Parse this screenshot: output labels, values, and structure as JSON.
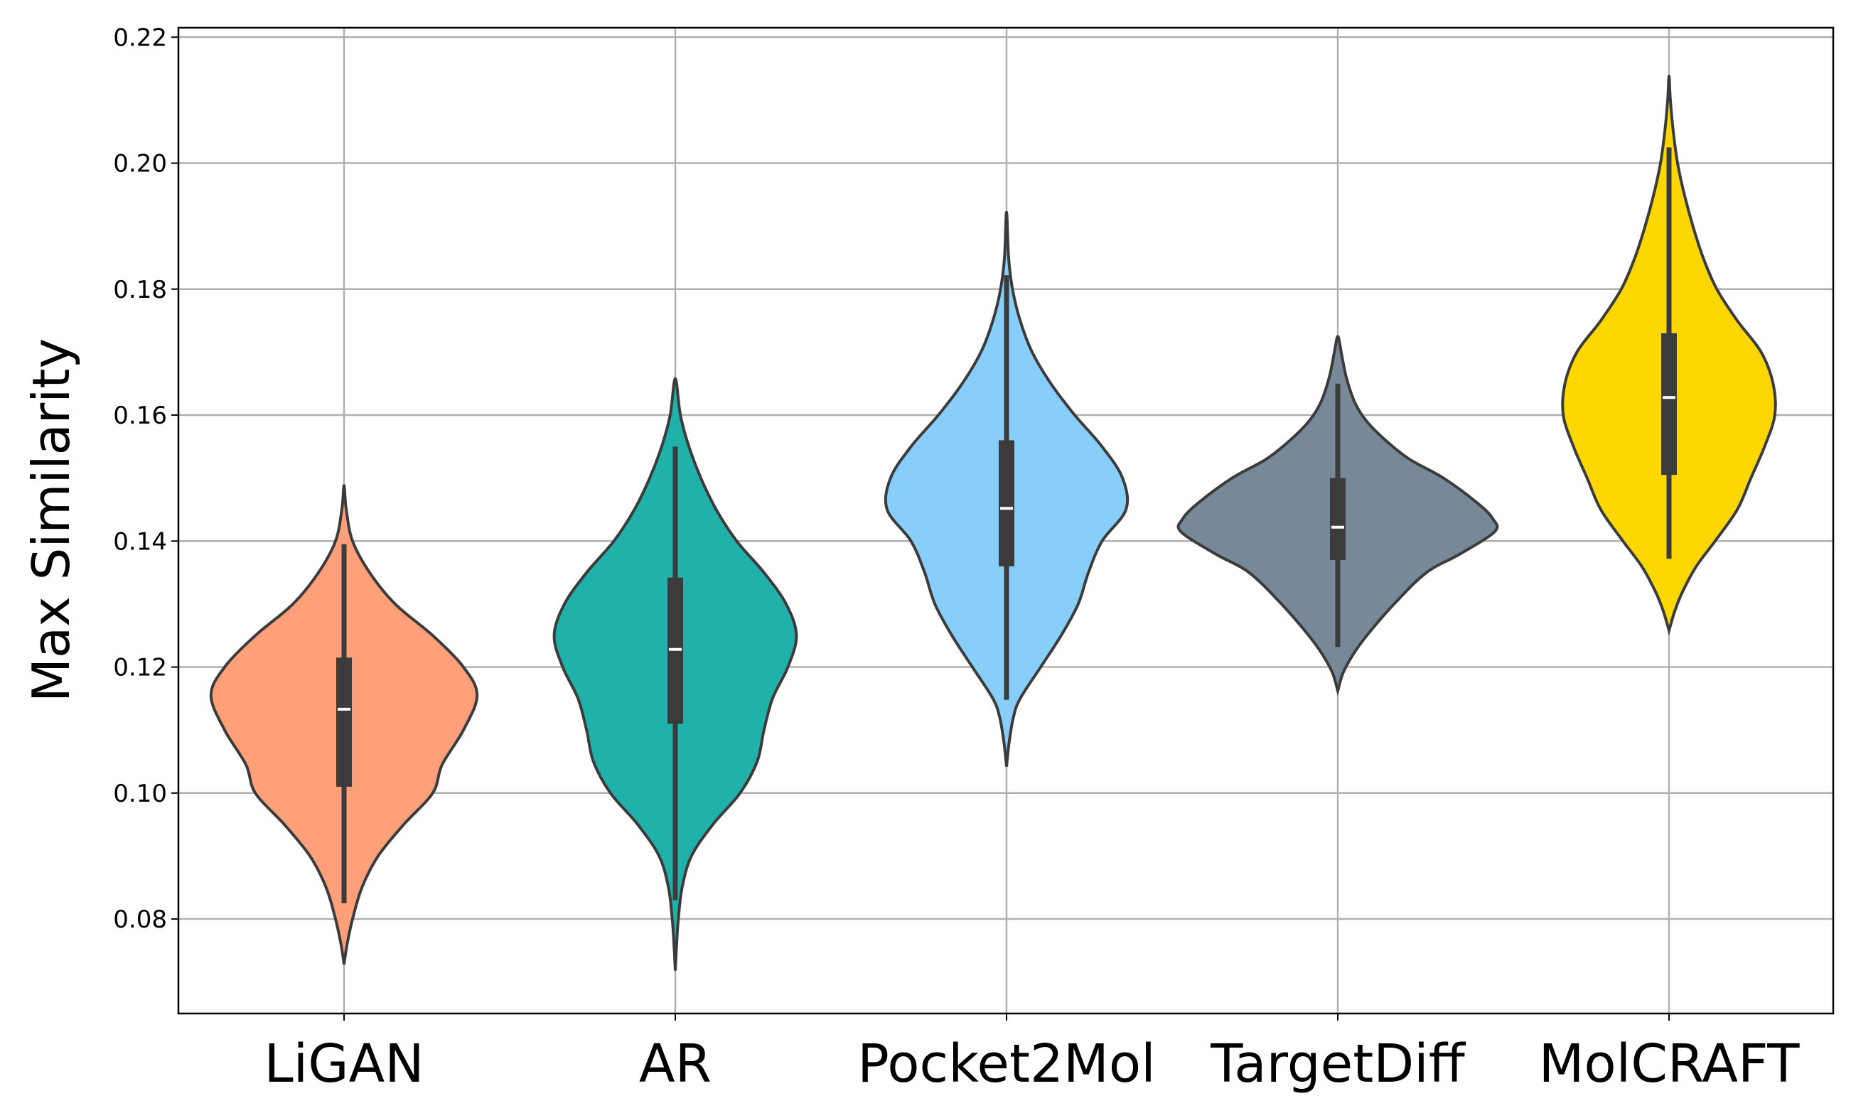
{
  "chart_data": {
    "type": "violin",
    "title": "",
    "xlabel": "",
    "ylabel": "Max Similarity",
    "ylim": [
      0.065,
      0.2215
    ],
    "yticks": [
      "0.08",
      "0.10",
      "0.12",
      "0.14",
      "0.16",
      "0.18",
      "0.20",
      "0.22"
    ],
    "grid": true,
    "categories": [
      "LiGAN",
      "AR",
      "Pocket2Mol",
      "TargetDiff",
      "MolCRAFT"
    ],
    "colors": [
      "#FFA07A",
      "#20B2AA",
      "#87CEFA",
      "#778899",
      "#FFD700"
    ],
    "series": [
      {
        "min": 0.0825,
        "q1": 0.101,
        "median": 0.1133,
        "q3": 0.1215,
        "max": 0.1395,
        "profile": [
          [
            0.0728,
            0.0
          ],
          [
            0.076,
            0.018
          ],
          [
            0.08,
            0.05
          ],
          [
            0.085,
            0.105
          ],
          [
            0.09,
            0.2
          ],
          [
            0.095,
            0.35
          ],
          [
            0.1,
            0.52
          ],
          [
            0.1045,
            0.575
          ],
          [
            0.11,
            0.7
          ],
          [
            0.1155,
            0.78
          ],
          [
            0.12,
            0.7
          ],
          [
            0.125,
            0.52
          ],
          [
            0.13,
            0.3
          ],
          [
            0.135,
            0.15
          ],
          [
            0.14,
            0.05
          ],
          [
            0.145,
            0.013
          ],
          [
            0.1488,
            0.0
          ]
        ]
      },
      {
        "min": 0.083,
        "q1": 0.111,
        "median": 0.1228,
        "q3": 0.1342,
        "max": 0.155,
        "profile": [
          [
            0.0718,
            0.0
          ],
          [
            0.076,
            0.008
          ],
          [
            0.08,
            0.018
          ],
          [
            0.085,
            0.04
          ],
          [
            0.09,
            0.095
          ],
          [
            0.095,
            0.22
          ],
          [
            0.1,
            0.38
          ],
          [
            0.105,
            0.48
          ],
          [
            0.11,
            0.52
          ],
          [
            0.115,
            0.57
          ],
          [
            0.12,
            0.66
          ],
          [
            0.125,
            0.71
          ],
          [
            0.13,
            0.65
          ],
          [
            0.135,
            0.52
          ],
          [
            0.14,
            0.36
          ],
          [
            0.145,
            0.24
          ],
          [
            0.15,
            0.15
          ],
          [
            0.155,
            0.08
          ],
          [
            0.16,
            0.03
          ],
          [
            0.1658,
            0.0
          ]
        ]
      },
      {
        "min": 0.1148,
        "q1": 0.136,
        "median": 0.1452,
        "q3": 0.156,
        "max": 0.1822,
        "profile": [
          [
            0.1042,
            0.0
          ],
          [
            0.108,
            0.015
          ],
          [
            0.112,
            0.04
          ],
          [
            0.115,
            0.08
          ],
          [
            0.12,
            0.2
          ],
          [
            0.125,
            0.32
          ],
          [
            0.13,
            0.42
          ],
          [
            0.135,
            0.48
          ],
          [
            0.14,
            0.56
          ],
          [
            0.145,
            0.7
          ],
          [
            0.15,
            0.68
          ],
          [
            0.155,
            0.56
          ],
          [
            0.16,
            0.4
          ],
          [
            0.165,
            0.26
          ],
          [
            0.17,
            0.15
          ],
          [
            0.175,
            0.08
          ],
          [
            0.18,
            0.035
          ],
          [
            0.185,
            0.012
          ],
          [
            0.1922,
            0.0
          ]
        ]
      },
      {
        "min": 0.1232,
        "q1": 0.137,
        "median": 0.1422,
        "q3": 0.15,
        "max": 0.165,
        "profile": [
          [
            0.1162,
            0.0
          ],
          [
            0.119,
            0.03
          ],
          [
            0.122,
            0.09
          ],
          [
            0.125,
            0.17
          ],
          [
            0.13,
            0.33
          ],
          [
            0.135,
            0.52
          ],
          [
            0.138,
            0.72
          ],
          [
            0.1415,
            0.92
          ],
          [
            0.1435,
            0.91
          ],
          [
            0.146,
            0.82
          ],
          [
            0.15,
            0.62
          ],
          [
            0.153,
            0.42
          ],
          [
            0.156,
            0.28
          ],
          [
            0.159,
            0.17
          ],
          [
            0.162,
            0.1
          ],
          [
            0.166,
            0.05
          ],
          [
            0.17,
            0.02
          ],
          [
            0.1725,
            0.0
          ]
        ]
      },
      {
        "min": 0.1372,
        "q1": 0.1505,
        "median": 0.1628,
        "q3": 0.173,
        "max": 0.2025,
        "profile": [
          [
            0.1258,
            0.0
          ],
          [
            0.129,
            0.035
          ],
          [
            0.132,
            0.08
          ],
          [
            0.136,
            0.16
          ],
          [
            0.14,
            0.27
          ],
          [
            0.145,
            0.4
          ],
          [
            0.15,
            0.48
          ],
          [
            0.155,
            0.56
          ],
          [
            0.16,
            0.62
          ],
          [
            0.165,
            0.61
          ],
          [
            0.17,
            0.54
          ],
          [
            0.175,
            0.4
          ],
          [
            0.18,
            0.28
          ],
          [
            0.185,
            0.2
          ],
          [
            0.19,
            0.14
          ],
          [
            0.195,
            0.09
          ],
          [
            0.2,
            0.05
          ],
          [
            0.205,
            0.025
          ],
          [
            0.21,
            0.008
          ],
          [
            0.2138,
            0.0
          ]
        ]
      }
    ]
  }
}
